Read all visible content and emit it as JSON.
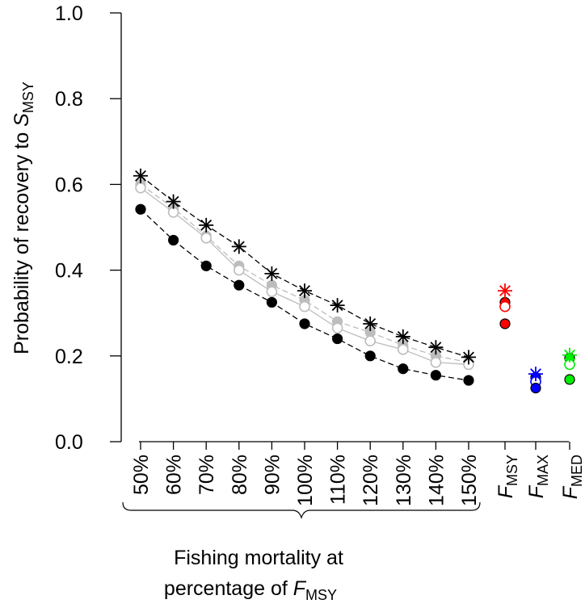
{
  "chart_data": {
    "type": "scatter",
    "ylabel": {
      "main": "Probability of recovery to ",
      "italic": "S",
      "sub": "MSY"
    },
    "xlabel": {
      "line1": "Fishing mortality at",
      "line2_main": "percentage of ",
      "line2_italic": "F",
      "line2_sub": "MSY"
    },
    "ylim": [
      0.0,
      1.0
    ],
    "yticks": [
      "0.0",
      "0.2",
      "0.4",
      "0.6",
      "0.8",
      "1.0"
    ],
    "categories": [
      "50%",
      "60%",
      "70%",
      "80%",
      "90%",
      "100%",
      "110%",
      "120%",
      "130%",
      "140%",
      "150%"
    ],
    "reference_labels": [
      {
        "italic": "F",
        "sub": "MSY"
      },
      {
        "italic": "F",
        "sub": "MAX"
      },
      {
        "italic": "F",
        "sub": "MED"
      }
    ],
    "series": [
      {
        "marker": "star",
        "color": "#000000",
        "line": "dashed",
        "values": [
          0.62,
          0.56,
          0.505,
          0.455,
          0.392,
          0.352,
          0.318,
          0.275,
          0.245,
          0.22,
          0.197
        ]
      },
      {
        "marker": "open-circle",
        "color": "#bdbdbd",
        "line": "solid",
        "values": [
          0.592,
          0.535,
          0.475,
          0.4,
          0.35,
          0.315,
          0.265,
          0.235,
          0.215,
          0.185,
          0.18
        ]
      },
      {
        "marker": "filled-circle",
        "color": "#bdbdbd",
        "line": "dashed",
        "values": [
          0.6,
          0.545,
          0.48,
          0.41,
          0.365,
          0.33,
          0.28,
          0.255,
          0.225,
          0.2,
          0.185
        ]
      },
      {
        "marker": "filled-circle",
        "color": "#000000",
        "line": "dashed",
        "values": [
          0.542,
          0.47,
          0.41,
          0.365,
          0.325,
          0.275,
          0.24,
          0.2,
          0.17,
          0.155,
          0.143
        ]
      }
    ],
    "reference_points": [
      {
        "label": "FMSY",
        "color": "#ff0000",
        "star": 0.352,
        "open": 0.315,
        "gray": 0.325,
        "filled": 0.275
      },
      {
        "label": "FMAX",
        "color": "#0000ff",
        "star": 0.158,
        "open": 0.14,
        "gray": 0.15,
        "filled": 0.125
      },
      {
        "label": "FMED",
        "color": "#00ee00",
        "star": 0.202,
        "open": 0.18,
        "gray": 0.195,
        "filled": 0.145
      }
    ]
  }
}
